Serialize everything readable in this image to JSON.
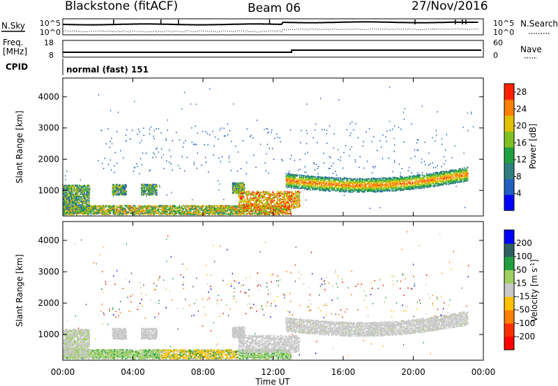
{
  "header": {
    "station": "Blackstone (fitACF)",
    "beam": "Beam 06",
    "date": "27/Nov/2016"
  },
  "top_panels": {
    "nsky_label": "N.Sky",
    "nsearch_label": "N.Search",
    "nsky_ticks": [
      "10^5",
      "10^0"
    ],
    "nsearch_ticks": [
      "10^5",
      "10^0"
    ],
    "freq_label_1": "Freq.",
    "freq_label_2": "[MHz]",
    "freq_ticks": [
      "18",
      "8"
    ],
    "nave_label": "Nave",
    "nave_ticks": [
      "60",
      "0"
    ],
    "cpid_label": "CPID",
    "cpid_value": "normal (fast) 151"
  },
  "chart_data": [
    {
      "type": "heatmap",
      "name": "power-panel",
      "xlabel": "",
      "ylabel": "Slant Range [km]",
      "x_range_hours": [
        0,
        24
      ],
      "ylim": [
        180,
        4600
      ],
      "y_ticks": [
        1000,
        2000,
        3000,
        4000
      ],
      "colorbar_label": "Power [dB]",
      "colorbar_ticks": [
        4,
        8,
        12,
        16,
        20,
        24,
        28
      ],
      "colorbar_range": [
        0,
        30
      ],
      "colors": [
        "#0000ff",
        "#2060c0",
        "#2e7f7f",
        "#20a040",
        "#80c020",
        "#e0c000",
        "#ff8000",
        "#ff2000"
      ]
    },
    {
      "type": "heatmap",
      "name": "velocity-panel",
      "xlabel": "Time UT",
      "ylabel": "Slant Range [km]",
      "x_range_hours": [
        0,
        24
      ],
      "x_ticks": [
        "00:00",
        "04:00",
        "08:00",
        "12:00",
        "16:00",
        "20:00",
        "00:00"
      ],
      "ylim": [
        180,
        4600
      ],
      "y_ticks": [
        1000,
        2000,
        3000,
        4000
      ],
      "colorbar_label": "Velocity [m s^-1]",
      "colorbar_ticks": [
        200,
        100,
        50,
        15,
        -15,
        -50,
        -100,
        -200
      ],
      "colors": [
        "#0000ff",
        "#2e6060",
        "#20a040",
        "#a0d060",
        "#c8c8c8",
        "#ffc000",
        "#ff8000",
        "#ff3000",
        "#ff0000"
      ]
    }
  ]
}
